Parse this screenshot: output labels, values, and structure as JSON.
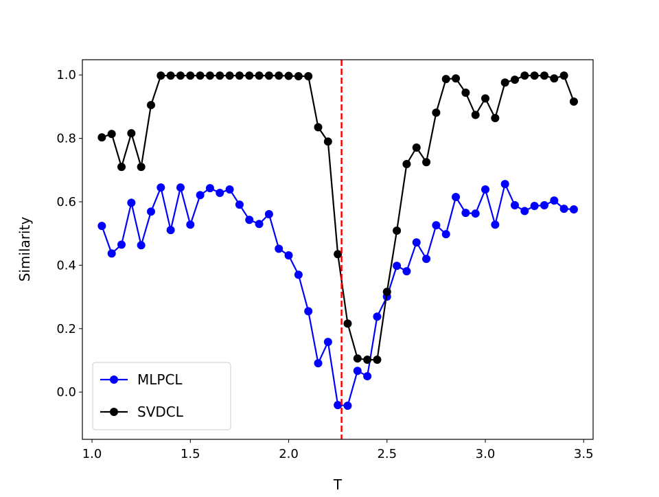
{
  "chart_data": {
    "type": "line",
    "title": "",
    "xlabel": "T",
    "ylabel": "Similarity",
    "xlim": [
      0.951,
      3.548
    ],
    "ylim": [
      -0.149,
      1.048
    ],
    "xticks": [
      1.0,
      1.5,
      2.0,
      2.5,
      3.0,
      3.5
    ],
    "xtick_labels": [
      "1.0",
      "1.5",
      "2.0",
      "2.5",
      "3.0",
      "3.5"
    ],
    "yticks": [
      0.0,
      0.2,
      0.4,
      0.6,
      0.8,
      1.0
    ],
    "ytick_labels": [
      "0.0",
      "0.2",
      "0.4",
      "0.6",
      "0.8",
      "1.0"
    ],
    "grid": false,
    "legend_position": "lower-left",
    "vline": {
      "x": 2.269,
      "color": "#ff0000",
      "style": "dashed"
    },
    "x": [
      1.05,
      1.1,
      1.15,
      1.2,
      1.25,
      1.3,
      1.35,
      1.4,
      1.45,
      1.5,
      1.55,
      1.6,
      1.65,
      1.7,
      1.75,
      1.8,
      1.85,
      1.9,
      1.95,
      2.0,
      2.05,
      2.1,
      2.15,
      2.2,
      2.25,
      2.3,
      2.35,
      2.4,
      2.45,
      2.5,
      2.55,
      2.6,
      2.65,
      2.7,
      2.75,
      2.8,
      2.85,
      2.9,
      2.95,
      3.0,
      3.05,
      3.1,
      3.15,
      3.2,
      3.25,
      3.3,
      3.35,
      3.4,
      3.45
    ],
    "series": [
      {
        "name": "MLPCL",
        "color": "#0000ff",
        "marker": "circle",
        "values": [
          0.524,
          0.437,
          0.465,
          0.597,
          0.463,
          0.569,
          0.645,
          0.511,
          0.645,
          0.528,
          0.621,
          0.643,
          0.628,
          0.639,
          0.591,
          0.543,
          0.53,
          0.561,
          0.452,
          0.431,
          0.37,
          0.255,
          0.091,
          0.158,
          -0.041,
          -0.043,
          0.067,
          0.05,
          0.238,
          0.301,
          0.398,
          0.381,
          0.472,
          0.42,
          0.526,
          0.498,
          0.615,
          0.565,
          0.563,
          0.639,
          0.528,
          0.656,
          0.589,
          0.571,
          0.587,
          0.589,
          0.604,
          0.578,
          0.576
        ]
      },
      {
        "name": "SVDCL",
        "color": "#000000",
        "marker": "circle",
        "values": [
          0.803,
          0.814,
          0.71,
          0.816,
          0.71,
          0.905,
          0.998,
          0.998,
          0.998,
          0.998,
          0.998,
          0.998,
          0.998,
          0.998,
          0.998,
          0.998,
          0.998,
          0.998,
          0.998,
          0.997,
          0.996,
          0.996,
          0.835,
          0.79,
          0.435,
          0.216,
          0.106,
          0.102,
          0.102,
          0.316,
          0.509,
          0.719,
          0.771,
          0.725,
          0.881,
          0.987,
          0.989,
          0.944,
          0.874,
          0.926,
          0.864,
          0.976,
          0.985,
          0.998,
          0.998,
          0.998,
          0.989,
          0.998,
          0.916
        ]
      }
    ]
  }
}
